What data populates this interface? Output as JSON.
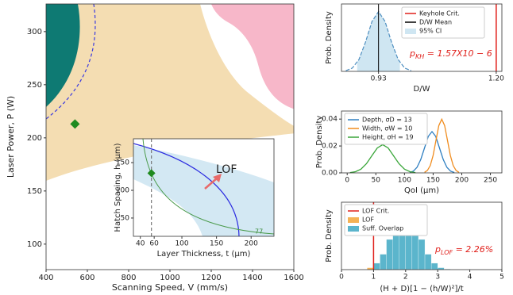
{
  "chart_data": [
    {
      "type": "scatter",
      "xlabel": "Scanning Speed, V (mm/s)",
      "ylabel": "Laser Power, P (W)",
      "xlim": [
        400,
        1600
      ],
      "ylim": [
        76,
        326
      ],
      "xticks": [
        400,
        600,
        800,
        1000,
        1200,
        1400,
        1600
      ],
      "yticks": [
        100,
        150,
        200,
        250,
        300
      ],
      "x": [
        540
      ],
      "values": [
        213
      ],
      "color": "#1f8a1f"
    },
    {
      "type": "scatter",
      "xlabel": "Layer Thickness, t (μm)",
      "ylabel": "Hatch Spacing, h (μm)",
      "xlim": [
        30,
        233
      ],
      "ylim": [
        17,
        193
      ],
      "xticks": [
        40,
        60,
        100,
        150,
        200
      ],
      "yticks": [
        50,
        100,
        150
      ],
      "x": [
        56
      ],
      "values": [
        131
      ],
      "color": "#1f8a1f",
      "vline": 56,
      "annotations": [
        "LOF",
        "77"
      ]
    },
    {
      "type": "line",
      "xlabel": "D/W",
      "ylabel": "Prob. Density",
      "xlim": [
        0.845,
        1.213
      ],
      "ylim": [
        0,
        18
      ],
      "xticks": [
        0.93,
        {
          "value": 1.2,
          "label": "1.20"
        }
      ],
      "x": [
        0.855,
        0.87,
        0.885,
        0.9,
        0.915,
        0.93,
        0.945,
        0.96,
        0.975,
        0.99,
        1.005
      ],
      "values": [
        0.18,
        0.9,
        3.16,
        7.77,
        13.33,
        15.96,
        13.33,
        7.77,
        3.16,
        0.9,
        0.18
      ],
      "color": "#4f8fc0",
      "mean": 0.93,
      "keyhole_crit": 1.2,
      "ci": [
        0.881,
        0.979
      ],
      "legend": [
        {
          "name": "Keyhole Crit.",
          "color": "#e0201b"
        },
        {
          "name": "D/W Mean",
          "color": "#000000"
        },
        {
          "name": "95% CI",
          "color": "#cfe6f2"
        }
      ],
      "annotation": {
        "symbol": "p",
        "subscript": "KH",
        "text": " = 1.57X10 − 6"
      }
    },
    {
      "type": "multiline",
      "xlabel": "QoI (μm)",
      "ylabel": "Prob. Density",
      "xlim": [
        -10,
        270
      ],
      "ylim": [
        0,
        0.046
      ],
      "xticks": [
        0,
        50,
        100,
        150,
        200,
        250
      ],
      "yticks": [
        {
          "value": 0,
          "label": "0.00"
        },
        {
          "value": 0.02,
          "label": "0.02"
        },
        {
          "value": 0.04,
          "label": "0.04"
        }
      ],
      "series": [
        {
          "name": "Depth, σD = 13",
          "color": "#2f7fc1",
          "x": [
            109,
            115.5,
            122,
            128.5,
            135,
            141.5,
            148,
            154.5,
            161,
            167.5,
            174,
            180.5,
            187
          ],
          "values": [
            0.0003,
            0.0013,
            0.0042,
            0.01,
            0.0186,
            0.0271,
            0.0307,
            0.0271,
            0.0186,
            0.01,
            0.0042,
            0.0013,
            0.0003
          ]
        },
        {
          "name": "Width, σW = 10",
          "color": "#f08c1e",
          "x": [
            135,
            140,
            145,
            150,
            155,
            160,
            165,
            170,
            175,
            180,
            185,
            190,
            195
          ],
          "values": [
            0.0004,
            0.0018,
            0.0054,
            0.013,
            0.0242,
            0.0352,
            0.0399,
            0.0352,
            0.0242,
            0.013,
            0.0054,
            0.0018,
            0.0004
          ]
        },
        {
          "name": "Height, σH = 19",
          "color": "#3aa63a",
          "x": [
            5,
            14.5,
            24,
            33.5,
            43,
            52.5,
            62,
            71.5,
            81,
            90.5,
            100,
            109.5,
            119
          ],
          "values": [
            0.0002,
            0.0009,
            0.0028,
            0.0068,
            0.0127,
            0.0185,
            0.021,
            0.0185,
            0.0127,
            0.0068,
            0.0028,
            0.0009,
            0.0002
          ]
        }
      ]
    },
    {
      "type": "histogram",
      "xlabel": "(H + D)[1 − (h/W)²]/t",
      "ylabel": "Prob. Density",
      "xlim": [
        0,
        5
      ],
      "ylim": [
        0,
        1.05
      ],
      "xticks": [
        0,
        1,
        2,
        3,
        4,
        5
      ],
      "bins": [
        0.8,
        1.0,
        1.2,
        1.4,
        1.6,
        1.8,
        2.0,
        2.2,
        2.4,
        2.6,
        2.8,
        3.0,
        3.2,
        3.4
      ],
      "series": [
        {
          "name": "LOF",
          "color": "#f5b255",
          "values": [
            0.03,
            null,
            null,
            null,
            null,
            null,
            null,
            null,
            null,
            null,
            null,
            null,
            null
          ]
        },
        {
          "name": "Suff. Overlap",
          "color": "#5bb5cc",
          "values": [
            null,
            0.1,
            0.24,
            0.47,
            0.74,
            0.92,
            0.92,
            0.74,
            0.47,
            0.24,
            0.1,
            0.03,
            0.01
          ]
        }
      ],
      "lof_crit": 1,
      "crit_name": "LOF Crit.",
      "crit_color": "#e0201b",
      "annotation": {
        "symbol": "p",
        "subscript": "LOF",
        "text": " = 2.26%"
      }
    }
  ]
}
